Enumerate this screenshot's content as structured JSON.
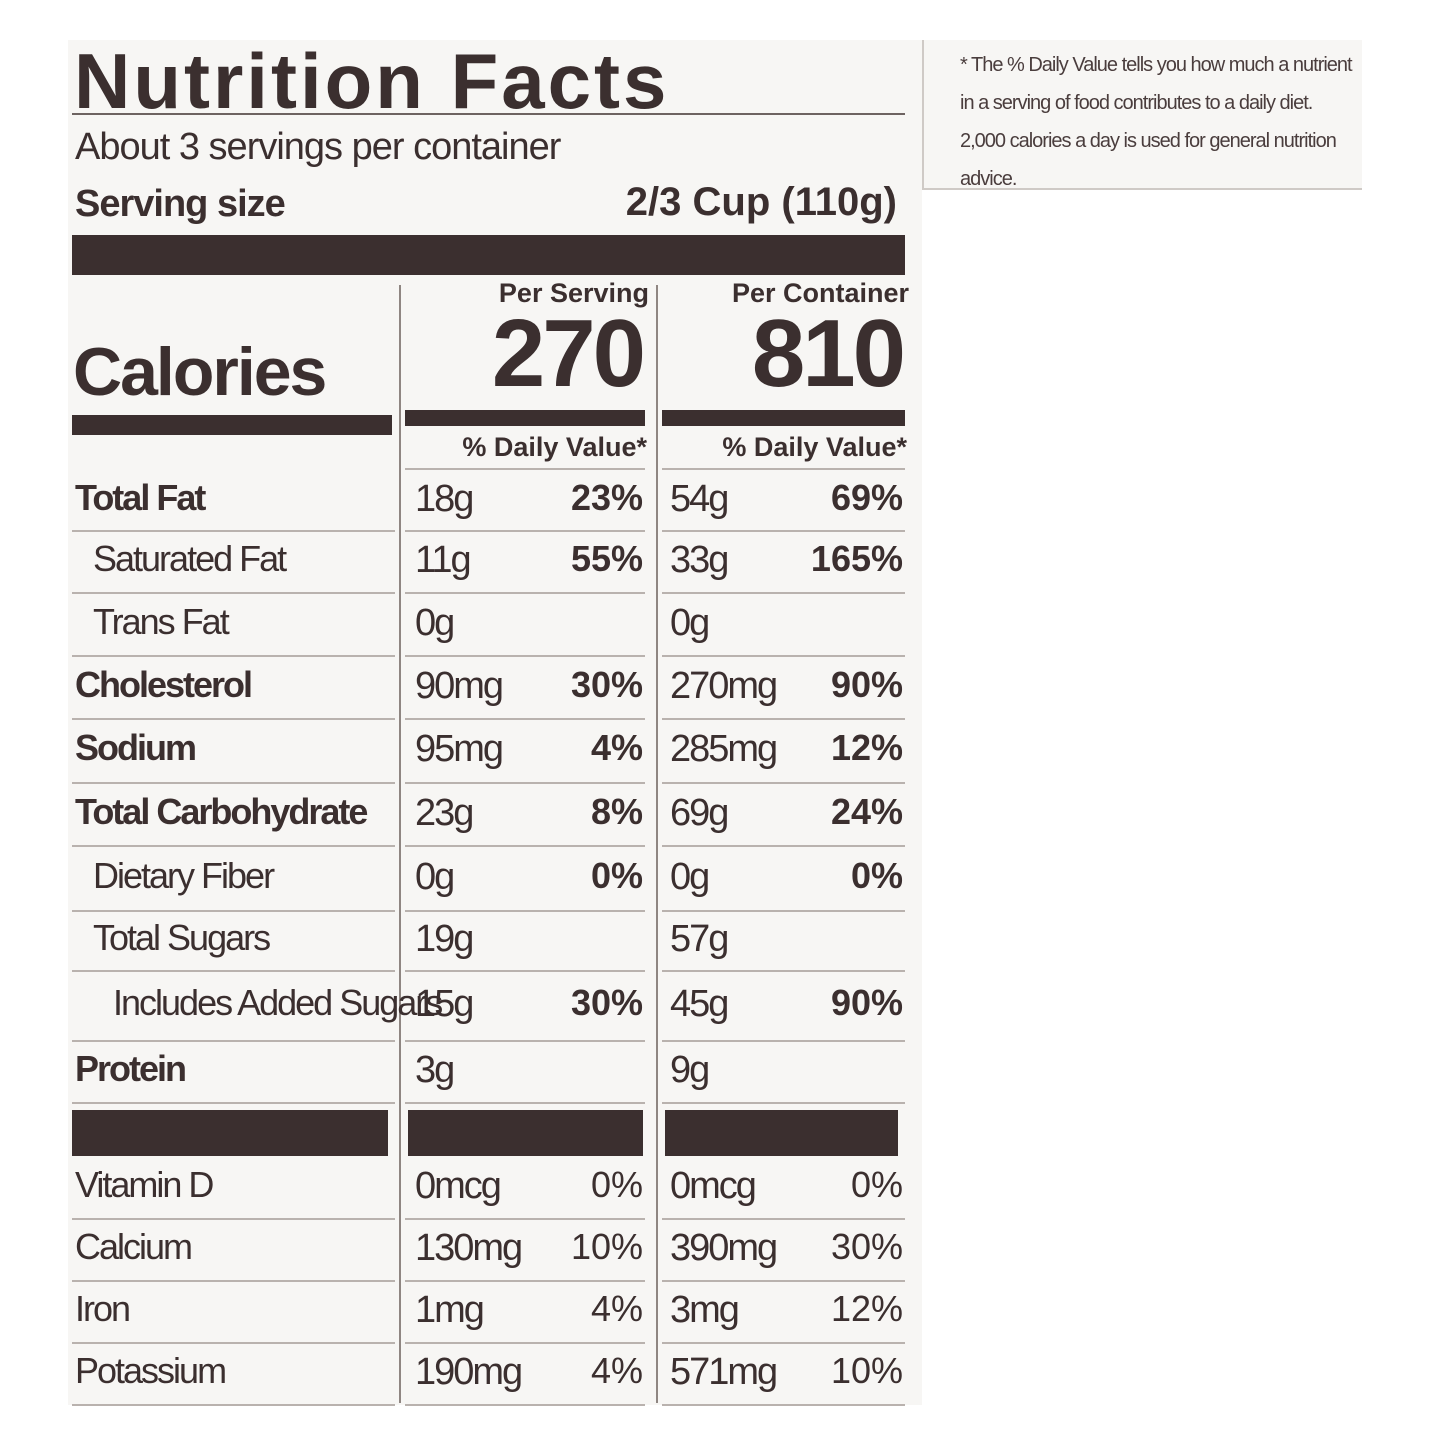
{
  "title": "Nutrition Facts",
  "servings": "About 3 servings per container",
  "serving_size": {
    "label": "Serving size",
    "value": "2/3 Cup (110g)"
  },
  "calories": {
    "label": "Calories",
    "columns": [
      {
        "header": "Per Serving",
        "value": "270",
        "dv_header": "% Daily Value*"
      },
      {
        "header": "Per Container",
        "value": "810",
        "dv_header": "% Daily Value*"
      }
    ]
  },
  "nutrients": [
    {
      "name": "Total Fat",
      "bold": true,
      "indent": 0,
      "serving": {
        "amount": "18g",
        "dv": "23%"
      },
      "container": {
        "amount": "54g",
        "dv": "69%"
      }
    },
    {
      "name": "Saturated Fat",
      "bold": false,
      "indent": 1,
      "serving": {
        "amount": "11g",
        "dv": "55%"
      },
      "container": {
        "amount": "33g",
        "dv": "165%"
      }
    },
    {
      "name": "Trans Fat",
      "bold": false,
      "indent": 1,
      "serving": {
        "amount": "0g",
        "dv": null
      },
      "container": {
        "amount": "0g",
        "dv": null
      }
    },
    {
      "name": "Cholesterol",
      "bold": true,
      "indent": 0,
      "serving": {
        "amount": "90mg",
        "dv": "30%"
      },
      "container": {
        "amount": "270mg",
        "dv": "90%"
      }
    },
    {
      "name": "Sodium",
      "bold": true,
      "indent": 0,
      "serving": {
        "amount": "95mg",
        "dv": "4%"
      },
      "container": {
        "amount": "285mg",
        "dv": "12%"
      }
    },
    {
      "name": "Total Carbohydrate",
      "bold": true,
      "indent": 0,
      "serving": {
        "amount": "23g",
        "dv": "8%"
      },
      "container": {
        "amount": "69g",
        "dv": "24%"
      }
    },
    {
      "name": "Dietary Fiber",
      "bold": false,
      "indent": 1,
      "serving": {
        "amount": "0g",
        "dv": "0%"
      },
      "container": {
        "amount": "0g",
        "dv": "0%"
      }
    },
    {
      "name": "Total Sugars",
      "bold": false,
      "indent": 1,
      "serving": {
        "amount": "19g",
        "dv": null
      },
      "container": {
        "amount": "57g",
        "dv": null
      }
    },
    {
      "name": "Includes Added Sugars",
      "bold": false,
      "indent": 2,
      "serving": {
        "amount": "15g",
        "dv": "30%"
      },
      "container": {
        "amount": "45g",
        "dv": "90%"
      }
    },
    {
      "name": "Protein",
      "bold": true,
      "indent": 0,
      "serving": {
        "amount": "3g",
        "dv": null
      },
      "container": {
        "amount": "9g",
        "dv": null
      }
    }
  ],
  "vitamins": [
    {
      "name": "Vitamin D",
      "serving": {
        "amount": "0mcg",
        "dv": "0%"
      },
      "container": {
        "amount": "0mcg",
        "dv": "0%"
      }
    },
    {
      "name": "Calcium",
      "serving": {
        "amount": "130mg",
        "dv": "10%"
      },
      "container": {
        "amount": "390mg",
        "dv": "30%"
      }
    },
    {
      "name": "Iron",
      "serving": {
        "amount": "1mg",
        "dv": "4%"
      },
      "container": {
        "amount": "3mg",
        "dv": "12%"
      }
    },
    {
      "name": "Potassium",
      "serving": {
        "amount": "190mg",
        "dv": "4%"
      },
      "container": {
        "amount": "571mg",
        "dv": "10%"
      }
    }
  ],
  "footnote": "* The % Daily Value tells you how much a nutrient in a serving of food contributes to a daily diet. 2,000 calories a day is used for general nutrition advice."
}
